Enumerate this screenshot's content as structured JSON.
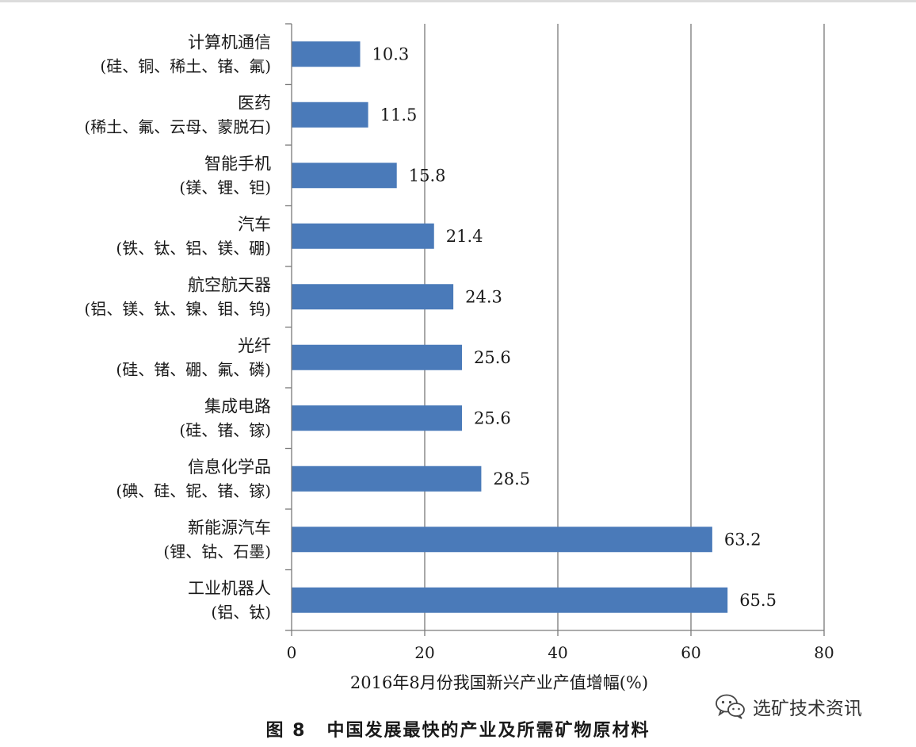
{
  "chart_data": {
    "type": "bar",
    "orientation": "horizontal",
    "categories": [
      {
        "name": "计算机通信",
        "materials": "(硅、铜、稀土、锗、氟)"
      },
      {
        "name": "医药",
        "materials": "(稀土、氟、云母、蒙脱石)"
      },
      {
        "name": "智能手机",
        "materials": "(镁、锂、钽)"
      },
      {
        "name": "汽车",
        "materials": "(铁、钛、铝、镁、硼)"
      },
      {
        "name": "航空航天器",
        "materials": "(铝、镁、钛、镍、钼、钨)"
      },
      {
        "name": "光纤",
        "materials": "(硅、锗、硼、氟、磷)"
      },
      {
        "name": "集成电路",
        "materials": "(硅、锗、镓)"
      },
      {
        "name": "信息化学品",
        "materials": "(碘、硅、铌、锗、镓)"
      },
      {
        "name": "新能源汽车",
        "materials": "(锂、钴、石墨)"
      },
      {
        "name": "工业机器人",
        "materials": "(铝、钛)"
      }
    ],
    "values": [
      10.3,
      11.5,
      15.8,
      21.4,
      24.3,
      25.6,
      25.6,
      28.5,
      63.2,
      65.5
    ],
    "value_labels": [
      "10.3",
      "11.5",
      "15.8",
      "21.4",
      "24.3",
      "25.6",
      "25.6",
      "28.5",
      "63.2",
      "65.5"
    ],
    "xlabel": "2016年8月份我国新兴产业产值增幅(%)",
    "xlim": [
      0,
      80
    ],
    "xticks": [
      "0",
      "20",
      "40",
      "60",
      "80"
    ],
    "grid": "vertical",
    "bar_color": "#4a7ab9",
    "legend": "none"
  },
  "caption": {
    "figure_number": "图 8",
    "text": "中国发展最快的产业及所需矿物原材料"
  },
  "watermark": {
    "icon": "wechat-icon",
    "text": "选矿技术资讯"
  }
}
